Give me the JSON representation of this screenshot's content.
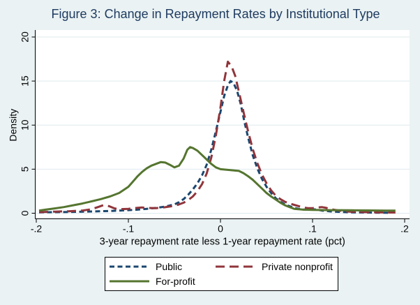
{
  "figure": {
    "background_color": "#eaf2f3",
    "plot_background_color": "#ffffff",
    "gridline_color": "#dde9ee",
    "axis_color": "#000000",
    "title_color": "#1e3a5f",
    "legend_border_color": "#000000"
  },
  "chart_data": {
    "type": "line",
    "title": "Figure 3: Change in Repayment Rates by Institutional Type",
    "xlabel": "3-year repayment rate less 1-year repayment rate (pct)",
    "ylabel": "Density",
    "xlim": [
      -0.2,
      0.2
    ],
    "ylim": [
      0,
      20
    ],
    "xtick_values": [
      -0.2,
      -0.1,
      0,
      0.1,
      0.2
    ],
    "xtick_labels": [
      "-.2",
      "-.1",
      "0",
      ".1",
      ".2"
    ],
    "ytick_values": [
      0,
      5,
      10,
      15,
      20
    ],
    "ytick_labels": [
      "0",
      "5",
      "10",
      "15",
      "20"
    ],
    "grid": "horizontal",
    "legend_position": "bottom",
    "series": [
      {
        "name": "Public",
        "color": "#1a476f",
        "style": "dashed-short",
        "x": [
          -0.197,
          -0.18,
          -0.16,
          -0.14,
          -0.12,
          -0.1,
          -0.09,
          -0.08,
          -0.07,
          -0.06,
          -0.05,
          -0.045,
          -0.04,
          -0.035,
          -0.03,
          -0.025,
          -0.02,
          -0.015,
          -0.01,
          -0.005,
          0,
          0.004,
          0.008,
          0.011,
          0.014,
          0.018,
          0.022,
          0.026,
          0.03,
          0.035,
          0.04,
          0.045,
          0.05,
          0.055,
          0.06,
          0.065,
          0.07,
          0.075,
          0.08,
          0.085,
          0.09,
          0.095,
          0.1,
          0.105,
          0.11,
          0.12,
          0.13,
          0.14,
          0.16,
          0.185
        ],
        "y": [
          0.1,
          0.12,
          0.15,
          0.2,
          0.25,
          0.35,
          0.4,
          0.5,
          0.6,
          0.75,
          1.0,
          1.25,
          1.6,
          2.1,
          2.7,
          3.4,
          4.3,
          5.5,
          7.2,
          9.3,
          11.5,
          13.3,
          14.5,
          15.0,
          14.8,
          13.9,
          12.4,
          10.4,
          8.6,
          6.6,
          5.1,
          3.9,
          3.0,
          2.3,
          1.7,
          1.3,
          1.0,
          0.8,
          0.6,
          0.5,
          0.42,
          0.42,
          0.45,
          0.4,
          0.3,
          0.2,
          0.15,
          0.1,
          0.07,
          0.05
        ]
      },
      {
        "name": "Private nonprofit",
        "color": "#90353b",
        "style": "dashed-long",
        "x": [
          -0.197,
          -0.18,
          -0.165,
          -0.15,
          -0.14,
          -0.133,
          -0.127,
          -0.121,
          -0.115,
          -0.11,
          -0.1,
          -0.09,
          -0.085,
          -0.08,
          -0.07,
          -0.06,
          -0.05,
          -0.045,
          -0.04,
          -0.035,
          -0.03,
          -0.025,
          -0.02,
          -0.015,
          -0.01,
          -0.005,
          0,
          0.004,
          0.008,
          0.012,
          0.016,
          0.02,
          0.025,
          0.03,
          0.035,
          0.04,
          0.045,
          0.05,
          0.055,
          0.06,
          0.065,
          0.07,
          0.075,
          0.08,
          0.09,
          0.095,
          0.1,
          0.105,
          0.11,
          0.115,
          0.12,
          0.13,
          0.14,
          0.15,
          0.16,
          0.18,
          0.19
        ],
        "y": [
          0.12,
          0.18,
          0.22,
          0.3,
          0.45,
          0.7,
          0.92,
          0.8,
          0.55,
          0.45,
          0.5,
          0.62,
          0.65,
          0.6,
          0.58,
          0.68,
          0.85,
          1.0,
          1.2,
          1.5,
          1.9,
          2.5,
          3.3,
          4.5,
          6.3,
          8.8,
          12.0,
          15.0,
          17.2,
          16.7,
          15.6,
          13.8,
          11.5,
          9.3,
          7.3,
          5.7,
          4.4,
          3.4,
          2.6,
          2.0,
          1.6,
          1.3,
          1.1,
          0.95,
          0.65,
          0.58,
          0.58,
          0.65,
          0.7,
          0.6,
          0.45,
          0.28,
          0.18,
          0.14,
          0.12,
          0.08,
          0.08
        ]
      },
      {
        "name": "For-profit",
        "color": "#55752f",
        "style": "solid",
        "x": [
          -0.197,
          -0.19,
          -0.18,
          -0.17,
          -0.16,
          -0.15,
          -0.14,
          -0.13,
          -0.12,
          -0.11,
          -0.1,
          -0.095,
          -0.09,
          -0.085,
          -0.08,
          -0.075,
          -0.07,
          -0.065,
          -0.06,
          -0.055,
          -0.05,
          -0.045,
          -0.04,
          -0.036,
          -0.033,
          -0.03,
          -0.025,
          -0.02,
          -0.015,
          -0.01,
          -0.005,
          0,
          0.005,
          0.01,
          0.015,
          0.02,
          0.025,
          0.03,
          0.035,
          0.04,
          0.045,
          0.05,
          0.055,
          0.06,
          0.065,
          0.07,
          0.075,
          0.08,
          0.09,
          0.1,
          0.12,
          0.14,
          0.16,
          0.18,
          0.19
        ],
        "y": [
          0.3,
          0.4,
          0.55,
          0.7,
          0.9,
          1.1,
          1.35,
          1.6,
          1.9,
          2.3,
          3.0,
          3.6,
          4.2,
          4.7,
          5.1,
          5.4,
          5.6,
          5.8,
          5.75,
          5.5,
          5.2,
          5.4,
          6.2,
          7.2,
          7.5,
          7.4,
          7.1,
          6.6,
          6.1,
          5.6,
          5.2,
          5.0,
          4.95,
          4.9,
          4.85,
          4.8,
          4.55,
          4.2,
          3.8,
          3.3,
          2.8,
          2.3,
          1.9,
          1.55,
          1.2,
          0.9,
          0.7,
          0.5,
          0.4,
          0.37,
          0.35,
          0.33,
          0.32,
          0.3,
          0.3
        ]
      }
    ]
  }
}
